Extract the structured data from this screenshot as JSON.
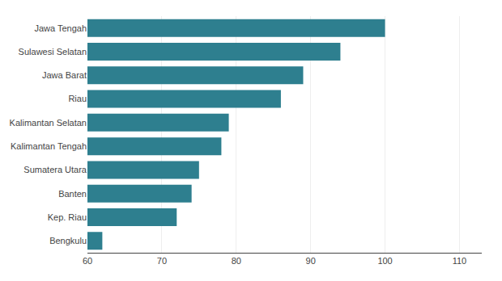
{
  "chart_data": {
    "type": "bar",
    "orientation": "horizontal",
    "categories": [
      "Bengkulu",
      "Kep. Riau",
      "Banten",
      "Sumatera Utara",
      "Kalimantan Tengah",
      "Kalimantan Selatan",
      "Riau",
      "Jawa Barat",
      "Sulawesi Selatan",
      "Jawa Tengah"
    ],
    "values": [
      62,
      72,
      74,
      75,
      78,
      79,
      86,
      89,
      94,
      100
    ],
    "color": "#2e7f8f",
    "xlim": [
      60,
      113
    ],
    "xticks": [
      60,
      70,
      80,
      90,
      100,
      110
    ],
    "grid": true
  }
}
